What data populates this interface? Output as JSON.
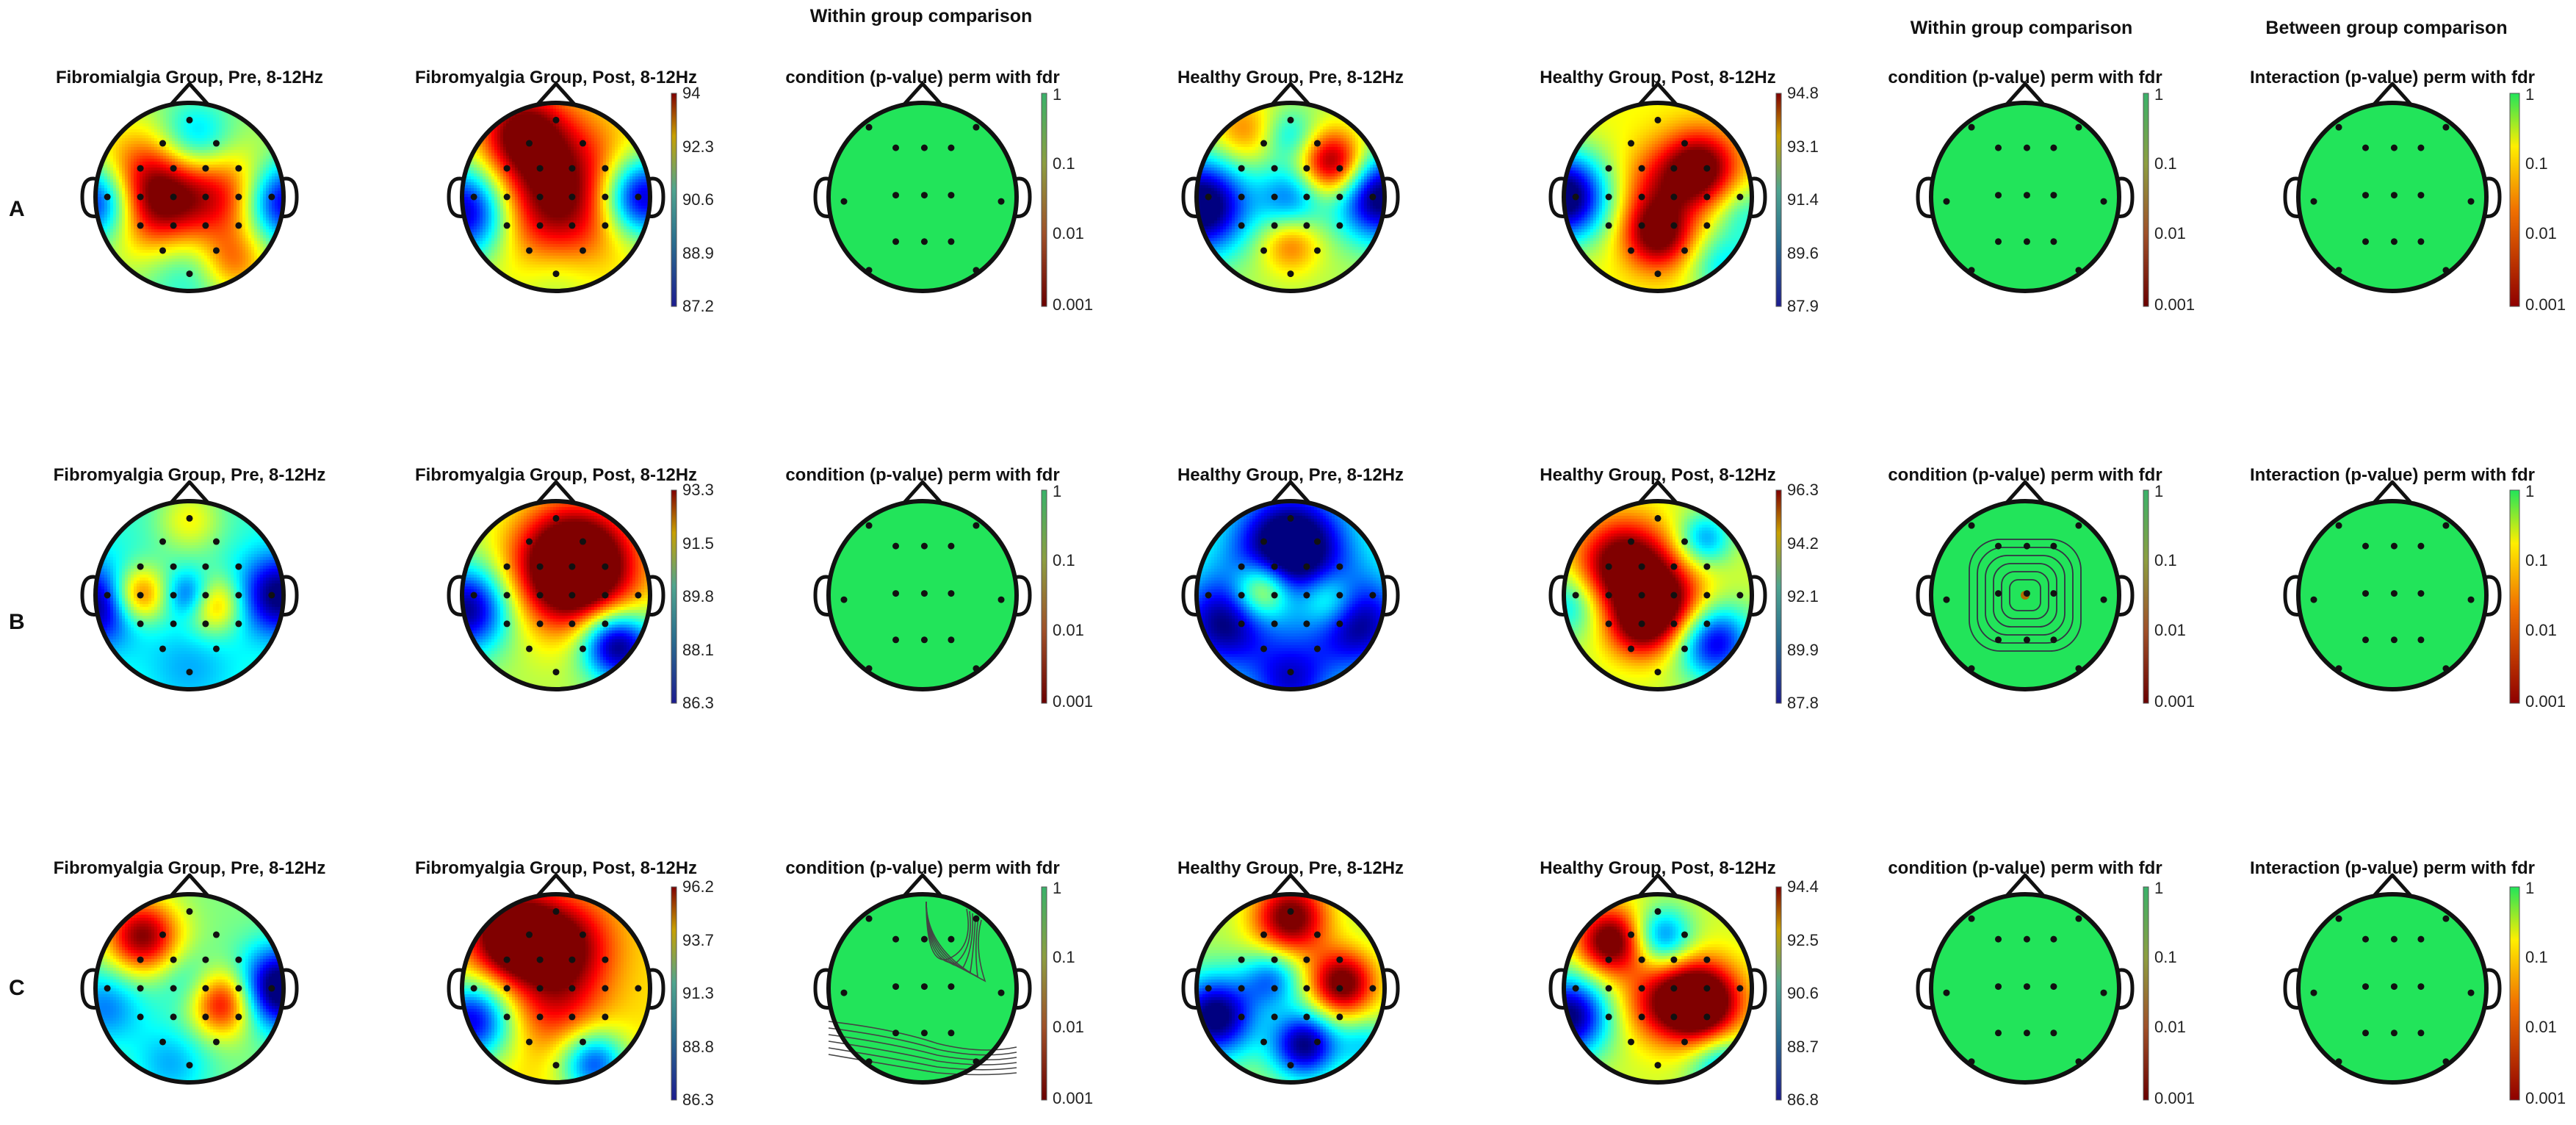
{
  "headers": [
    {
      "key": "within_a",
      "text": "Within group comparison"
    },
    {
      "key": "within_b",
      "text": "Within group comparison"
    },
    {
      "key": "between",
      "text": "Between group comparison"
    }
  ],
  "pvalue_scale": [
    "1",
    "0.1",
    "0.01",
    "0.001"
  ],
  "colors": {
    "pvalue_green": "#22e45a",
    "head_outline": "#111111",
    "electrode": "#111111",
    "jet_low": "#00008f",
    "jet_high": "#800000"
  },
  "rows": [
    {
      "label": "A",
      "maps": [
        {
          "title": "Fibromialgia Group, Pre, 8-12Hz",
          "kind": "power",
          "scale": [],
          "pattern": "a-fm-pre"
        },
        {
          "title": "Fibromyalgia Group, Post, 8-12Hz",
          "kind": "power",
          "scale": [
            "94",
            "92.3",
            "90.6",
            "88.9",
            "87.2"
          ],
          "pattern": "a-fm-post"
        },
        {
          "title": "condition (p-value) perm with fdr",
          "kind": "pvalue",
          "scale": [
            "1",
            "0.1",
            "0.01",
            "0.001"
          ],
          "pattern": "flat",
          "colorbar": "within"
        },
        {
          "title": "Healthy Group, Pre, 8-12Hz",
          "kind": "power",
          "scale": [],
          "pattern": "a-h-pre"
        },
        {
          "title": "Healthy Group, Post, 8-12Hz",
          "kind": "power",
          "scale": [
            "94.8",
            "93.1",
            "91.4",
            "89.6",
            "87.9"
          ],
          "pattern": "a-h-post"
        },
        {
          "title": "condition (p-value) perm with fdr",
          "kind": "pvalue",
          "scale": [
            "1",
            "0.1",
            "0.01",
            "0.001"
          ],
          "pattern": "flat",
          "colorbar": "within"
        },
        {
          "title": "Interaction (p-value) perm with fdr",
          "kind": "pvalue",
          "scale": [
            "1",
            "0.1",
            "0.01",
            "0.001"
          ],
          "pattern": "flat",
          "colorbar": "interaction"
        }
      ]
    },
    {
      "label": "B",
      "maps": [
        {
          "title": "Fibromyalgia Group, Pre, 8-12Hz",
          "kind": "power",
          "scale": [],
          "pattern": "b-fm-pre"
        },
        {
          "title": "Fibromyalgia Group, Post, 8-12Hz",
          "kind": "power",
          "scale": [
            "93.3",
            "91.5",
            "89.8",
            "88.1",
            "86.3"
          ],
          "pattern": "b-fm-post"
        },
        {
          "title": "condition (p-value) perm with fdr",
          "kind": "pvalue",
          "scale": [
            "1",
            "0.1",
            "0.01",
            "0.001"
          ],
          "pattern": "flat",
          "colorbar": "within"
        },
        {
          "title": "Healthy Group, Pre, 8-12Hz",
          "kind": "power",
          "scale": [],
          "pattern": "b-h-pre"
        },
        {
          "title": "Healthy Group, Post, 8-12Hz",
          "kind": "power",
          "scale": [
            "96.3",
            "94.2",
            "92.1",
            "89.9",
            "87.8"
          ],
          "pattern": "b-h-post"
        },
        {
          "title": "condition (p-value) perm with fdr",
          "kind": "pvalue",
          "scale": [
            "1",
            "0.1",
            "0.01",
            "0.001"
          ],
          "pattern": "rings",
          "colorbar": "within"
        },
        {
          "title": "Interaction (p-value) perm with fdr",
          "kind": "pvalue",
          "scale": [
            "1",
            "0.1",
            "0.01",
            "0.001"
          ],
          "pattern": "flat",
          "colorbar": "interaction"
        }
      ]
    },
    {
      "label": "C",
      "maps": [
        {
          "title": "Fibromyalgia Group, Pre, 8-12Hz",
          "kind": "power",
          "scale": [],
          "pattern": "c-fm-pre"
        },
        {
          "title": "Fibromyalgia Group, Post, 8-12Hz",
          "kind": "power",
          "scale": [
            "96.2",
            "93.7",
            "91.3",
            "88.8",
            "86.3"
          ],
          "pattern": "c-fm-post"
        },
        {
          "title": "condition (p-value) perm with fdr",
          "kind": "pvalue",
          "scale": [
            "1",
            "0.1",
            "0.01",
            "0.001"
          ],
          "pattern": "contours",
          "colorbar": "within"
        },
        {
          "title": "Healthy Group, Pre, 8-12Hz",
          "kind": "power",
          "scale": [],
          "pattern": "c-h-pre"
        },
        {
          "title": "Healthy Group, Post, 8-12Hz",
          "kind": "power",
          "scale": [
            "94.4",
            "92.5",
            "90.6",
            "88.7",
            "86.8"
          ],
          "pattern": "c-h-post"
        },
        {
          "title": "condition (p-value) perm with fdr",
          "kind": "pvalue",
          "scale": [
            "1",
            "0.1",
            "0.01",
            "0.001"
          ],
          "pattern": "flat",
          "colorbar": "within"
        },
        {
          "title": "Interaction (p-value) perm with fdr",
          "kind": "pvalue",
          "scale": [
            "1",
            "0.1",
            "0.01",
            "0.001"
          ],
          "pattern": "flat",
          "colorbar": "interaction"
        }
      ]
    }
  ]
}
